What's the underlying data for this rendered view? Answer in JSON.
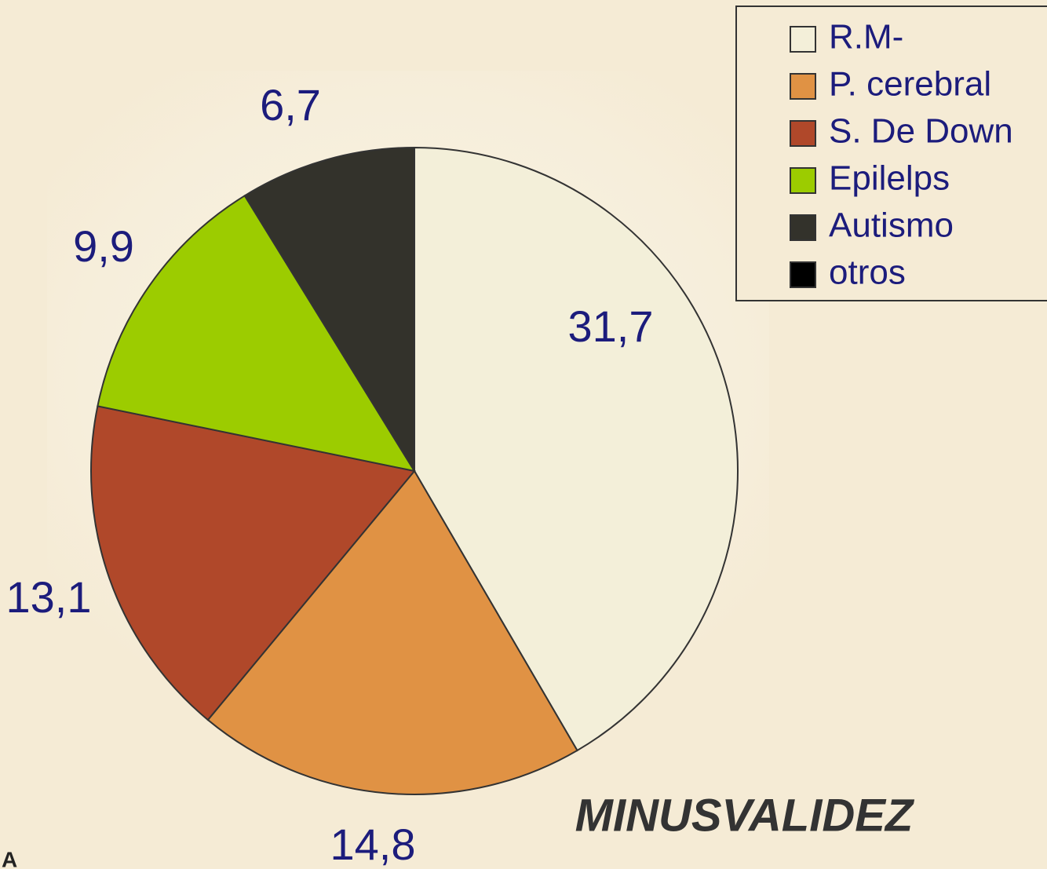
{
  "chart_data": {
    "type": "pie",
    "title": "MINUSVALIDEZ",
    "categories": [
      "R.M-",
      "P. cerebral",
      "S. De Down",
      "Epilelps",
      "Autismo",
      "otros"
    ],
    "values": [
      31.7,
      14.8,
      13.1,
      9.9,
      6.7,
      0
    ],
    "value_labels": [
      "31,7",
      "14,8",
      "13,1",
      "9,9",
      "6,7",
      null
    ],
    "colors": [
      "#f3efd9",
      "#e09244",
      "#b0482a",
      "#9ccc00",
      "#33322b",
      "#000000"
    ],
    "legend": "top-right",
    "footnote": "A"
  }
}
